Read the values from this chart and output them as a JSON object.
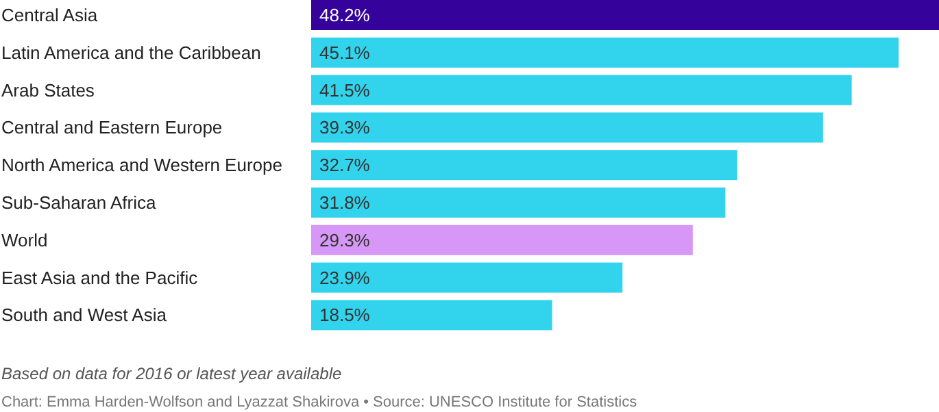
{
  "chart_data": {
    "type": "bar",
    "orientation": "horizontal",
    "categories": [
      "Central Asia",
      "Latin America and the Caribbean",
      "Arab States",
      "Central and Eastern Europe",
      "North America and Western Europe",
      "Sub-Saharan Africa",
      "World",
      "East Asia and the Pacific",
      "South and West Asia"
    ],
    "values": [
      48.2,
      45.1,
      41.5,
      39.3,
      32.7,
      31.8,
      29.3,
      23.9,
      18.5
    ],
    "colors": [
      "#35039c",
      "#31d4ec",
      "#31d4ec",
      "#31d4ec",
      "#31d4ec",
      "#31d4ec",
      "#d797f6",
      "#31d4ec",
      "#31d4ec"
    ],
    "value_labels": [
      "48.2%",
      "45.1%",
      "41.5%",
      "39.3%",
      "32.7%",
      "31.8%",
      "29.3%",
      "23.9%",
      "18.5%"
    ],
    "xlim": [
      0,
      48.2
    ],
    "annotations": [
      "Based on data for 2016 or latest year available",
      "Chart: Emma Harden-Wolfson and Lyazzat Shakirova • Source: UNESCO Institute for Statistics"
    ]
  }
}
